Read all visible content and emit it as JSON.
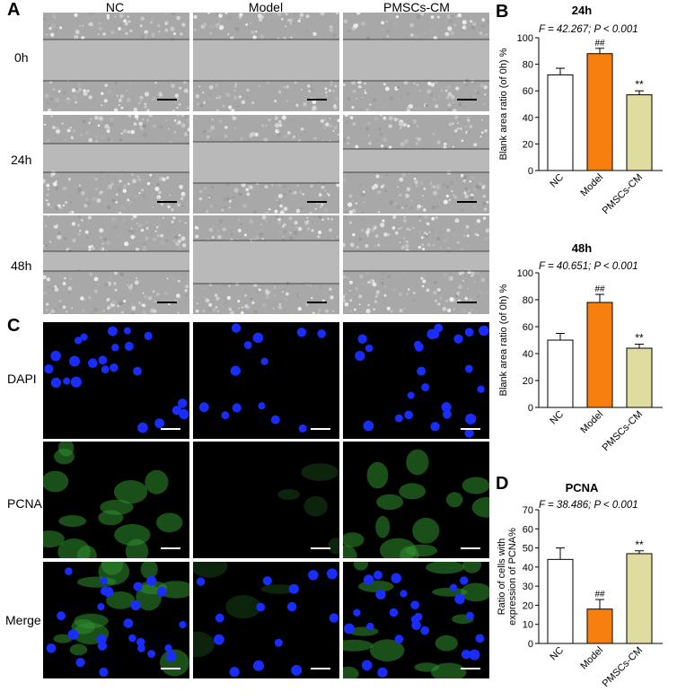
{
  "panels": {
    "a": "A",
    "b": "B",
    "c": "C",
    "d": "D"
  },
  "wound_columns": [
    "NC",
    "Model",
    "PMSCs-CM"
  ],
  "wound_rows": [
    "0h",
    "24h",
    "48h"
  ],
  "stain_rows": [
    "DAPI",
    "PCNA",
    "Merge"
  ],
  "colors": {
    "nc": "#ffffff",
    "model": "#f77f0e",
    "pmscs": "#dedc9f",
    "gray_bg": "#b9b9b9",
    "dapi": "#1a2dff",
    "pcna": "#2f8f2f"
  },
  "chart_data": [
    {
      "type": "bar",
      "title": "24h",
      "annotation": "F = 42.267; P < 0.001",
      "ylabel": "Blank area ratio (of 0h) %",
      "categories": [
        "NC",
        "Model",
        "PMSCs-CM"
      ],
      "values": [
        72,
        88,
        57
      ],
      "errors": [
        5,
        4,
        3
      ],
      "sig": [
        "",
        "##",
        "**"
      ],
      "ylim": [
        0,
        100
      ],
      "yticks": [
        0,
        20,
        40,
        60,
        80,
        100
      ]
    },
    {
      "type": "bar",
      "title": "48h",
      "annotation": "F = 40.651; P < 0.001",
      "ylabel": "Blank area ratio (of 0h) %",
      "categories": [
        "NC",
        "Model",
        "PMSCs-CM"
      ],
      "values": [
        50,
        78,
        44
      ],
      "errors": [
        5,
        6,
        3
      ],
      "sig": [
        "",
        "##",
        "**"
      ],
      "ylim": [
        0,
        100
      ],
      "yticks": [
        0,
        20,
        40,
        60,
        80,
        100
      ]
    },
    {
      "type": "bar",
      "title": "PCNA",
      "annotation": "F = 38.486; P < 0.001",
      "ylabel": "Ratio of cells with expression of PCNA%",
      "categories": [
        "NC",
        "Model",
        "PMSCs-CM"
      ],
      "values": [
        44,
        18,
        47
      ],
      "errors": [
        6,
        5,
        1.5
      ],
      "sig": [
        "",
        "##",
        "**"
      ],
      "ylim": [
        0,
        70
      ],
      "yticks": [
        0,
        10,
        20,
        30,
        40,
        50,
        60,
        70
      ]
    }
  ]
}
